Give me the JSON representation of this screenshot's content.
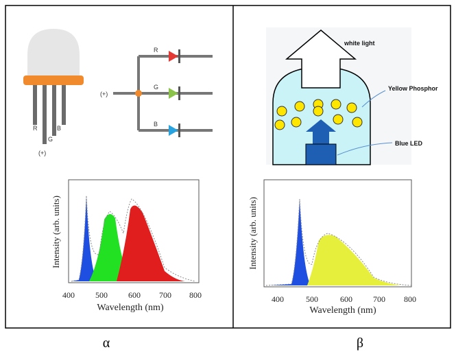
{
  "panels": [
    {
      "label": "α",
      "led": {
        "pins": [
          "R",
          "G",
          "B"
        ],
        "supply": "(+)"
      },
      "circuit": {
        "channels": [
          "R",
          "G",
          "B"
        ],
        "supply": "(+)"
      },
      "spectrum": {
        "x_label": "Wavelength (nm)",
        "y_label": "Intensity (arb. units)",
        "x_ticks": [
          "400",
          "500",
          "600",
          "700",
          "800"
        ]
      }
    },
    {
      "label": "β",
      "diagram": {
        "output": "white light",
        "phosphor": "Yellow Phosphor",
        "chip": "Blue LED"
      },
      "spectrum": {
        "x_label": "Wavelength (nm)",
        "y_label": "Intensity (arb. units)",
        "x_ticks": [
          "400",
          "500",
          "600",
          "700",
          "800"
        ]
      }
    }
  ]
}
